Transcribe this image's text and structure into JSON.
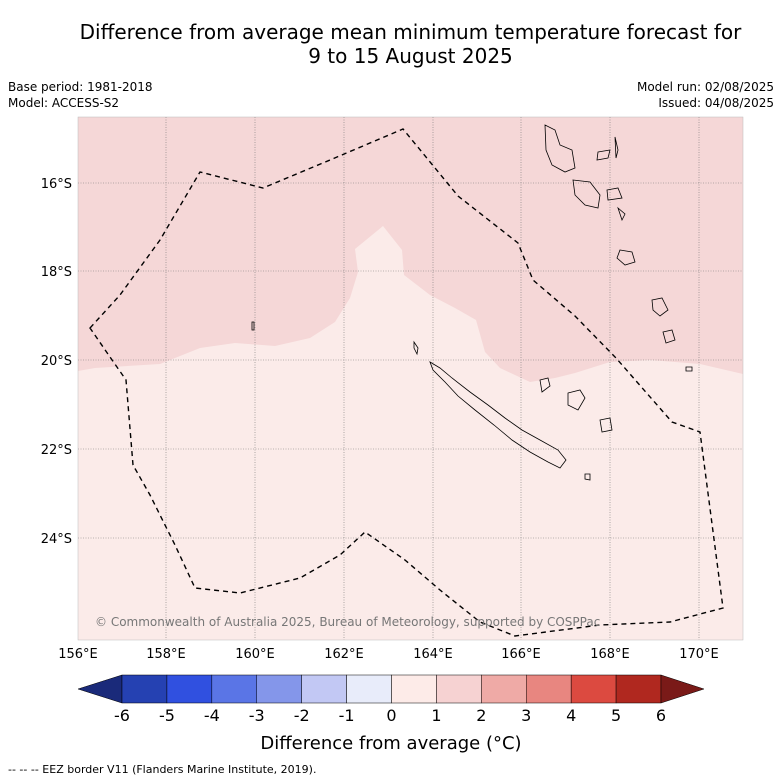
{
  "title_line1": "Difference from average mean minimum temperature forecast for",
  "title_line2": "9 to 15 August 2025",
  "base_period": "Base period: 1981-2018",
  "model": "Model: ACCESS-S2",
  "model_run": "Model run: 02/08/2025",
  "issued": "Issued: 04/08/2025",
  "copyright": "© Commonwealth of Australia 2025, Bureau of Meteorology, supported by COSPPac",
  "lat_labels": [
    "16°S",
    "18°S",
    "20°S",
    "22°S",
    "24°S"
  ],
  "lon_labels": [
    "156°E",
    "158°E",
    "160°E",
    "162°E",
    "164°E",
    "166°E",
    "168°E",
    "170°E"
  ],
  "colorbar": {
    "title": "Difference from average (°C)",
    "ticks": [
      "-6",
      "-5",
      "-4",
      "-3",
      "-2",
      "-1",
      "0",
      "1",
      "2",
      "3",
      "4",
      "5",
      "6"
    ],
    "colors": [
      "#1a2a7a",
      "#2541b2",
      "#3050e0",
      "#5a75e6",
      "#8496ea",
      "#c2c8f4",
      "#e8ecfa",
      "#fdebe8",
      "#f6d2d2",
      "#efaaa6",
      "#e88680",
      "#dc4a40",
      "#b0281f",
      "#7a1a18"
    ]
  },
  "regions": {
    "warm_1_to_2": "#f5d7d7",
    "warm_0_to_1": "#fbebe9"
  },
  "footer": "--  --  -- EEZ border V11 (Flanders Marine Institute, 2019)."
}
